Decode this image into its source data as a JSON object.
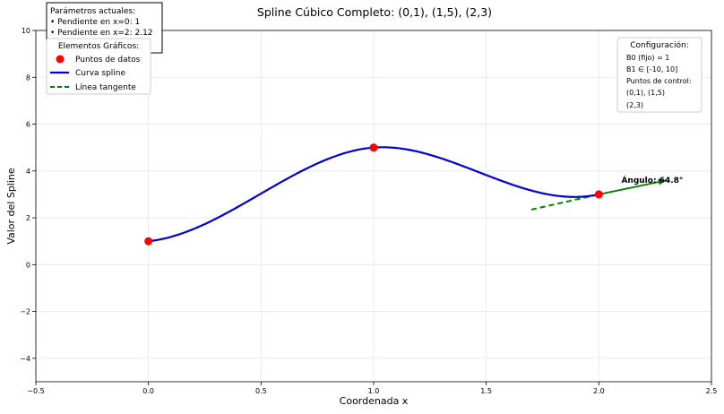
{
  "chart_data": {
    "type": "line",
    "title": "Spline Cúbico Completo: (0,1), (1,5), (2,3)",
    "xlabel": "Coordenada x",
    "ylabel": "Valor del Spline",
    "xlim": [
      -0.5,
      2.5
    ],
    "ylim": [
      -5,
      10
    ],
    "x_ticks": [
      -0.5,
      0.0,
      0.5,
      1.0,
      1.5,
      2.0,
      2.5
    ],
    "x_tick_labels": [
      "−0.5",
      "0.0",
      "0.5",
      "1.0",
      "1.5",
      "2.0",
      "2.5"
    ],
    "y_ticks": [
      -4,
      -2,
      0,
      2,
      4,
      6,
      8,
      10
    ],
    "y_tick_labels": [
      "−4",
      "−2",
      "0",
      "2",
      "4",
      "6",
      "8",
      "10"
    ],
    "grid": true,
    "data_points": [
      [
        0,
        1
      ],
      [
        1,
        5
      ],
      [
        2,
        3
      ]
    ],
    "slopes": {
      "x0": 1,
      "x2": 2.12
    },
    "tangent_line": {
      "x": [
        1.7,
        2.3
      ],
      "point": [
        2,
        3
      ],
      "slope": 2.12
    },
    "angle_annotation": {
      "text": "Ángulo: 64.8°",
      "x": 2.1,
      "y": 3.5
    },
    "angle_arrow": {
      "from": [
        2,
        3
      ],
      "to": [
        2.3,
        3.6
      ]
    },
    "colors": {
      "points": "#ff0000",
      "spline": "#0000dd",
      "tangent": "#008000",
      "annotation": "#006400"
    }
  },
  "params_box": {
    "title": "Parámetros actuales:",
    "line1": "• Pendiente en x=0: 1",
    "line2": "• Pendiente en x=2: 2.12"
  },
  "legend": {
    "title": "Elementos Gráficos:",
    "placement": "top-left",
    "items": [
      {
        "label": "Puntos de datos",
        "kind": "marker",
        "color": "#ff0000"
      },
      {
        "label": "Curva spline",
        "kind": "solid",
        "color": "#0000dd"
      },
      {
        "label": "Línea tangente",
        "kind": "dashed",
        "color": "#008000"
      }
    ]
  },
  "config_box": {
    "title": "Configuración:",
    "line1": "B0 (fijo) = 1",
    "line2": "B1 ∈ [-10, 10]",
    "line3": "Puntos de control:",
    "line4": "(0,1), (1,5)",
    "line5": "(2,3)"
  }
}
